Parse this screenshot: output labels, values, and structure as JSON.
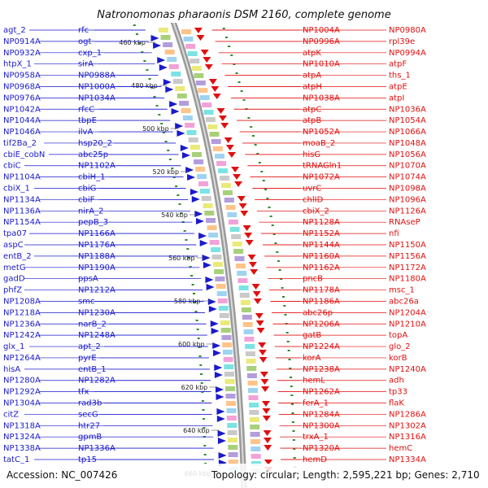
{
  "title": "Natronomonas pharaonis DSM 2160, complete genome",
  "footer": {
    "accession": "Accession: NC_007426",
    "topology": "Topology: circular; Length: 2,595,221 bp; Genes: 2,710"
  },
  "colors": {
    "left": "#1a1acc",
    "right": "#e01010",
    "rna": "#e88fcf",
    "backbone": "#888888",
    "tick": "#2e8b2e"
  },
  "kbp_ticks": [
    "460 kbp",
    "480 kbp",
    "500 kbp",
    "520 kbp",
    "540 kbp",
    "560 kbp",
    "580 kbp",
    "600 kbp",
    "620 kbp",
    "640 kbp",
    "660 kbp"
  ],
  "left_labels": [
    "agt_2",
    "rfc",
    "NP0914A",
    "ogt",
    "NP0932A",
    "cxp_1",
    "htpX_1",
    "sirA",
    "NP0958A",
    "NP0988A",
    "NP0968A",
    "NP1000A",
    "NP0976A",
    "NP1034A",
    "NP1042A",
    "rfcC",
    "NP1044A",
    "tbpE",
    "NP1046A",
    "ilvA",
    "tif2Ba_2",
    "hsp20_2",
    "cbiE_cobN",
    "abc25p",
    "cbiC",
    "NP1102A",
    "NP1104A",
    "cbiH_1",
    "cbiX_1",
    "cbiG",
    "NP1134A",
    "cbiF",
    "NP1136A",
    "nirA_2",
    "NP1154A",
    "pepB_3",
    "tpa07",
    "NP1166A",
    "aspC",
    "NP1176A",
    "entB_2",
    "NP1188A",
    "metG",
    "NP1190A",
    "gadD",
    "ppsA",
    "phfZ",
    "NP1212A",
    "NP1208A",
    "smc",
    "NP1218A",
    "NP1230A",
    "NP1236A",
    "narB_2",
    "NP1242A",
    "NP1248A",
    "glx_1",
    "apt_2",
    "NP1264A",
    "pyrE",
    "hisA",
    "entB_1",
    "NP1280A",
    "NP1282A",
    "NP1292A",
    "tfx",
    "NP1304A",
    "rad3b",
    "citZ",
    "secG",
    "NP1318A",
    "htr27",
    "NP1324A",
    "gpmB",
    "NP1338A",
    "NP1336A",
    "tatC_1",
    "tp15"
  ],
  "right_labels": [
    "NP1004A",
    "NP0980A",
    "NP0996A",
    "rpl39e",
    "atpK",
    "NP0994A",
    "NP1010A",
    "atpF",
    "atpA",
    "ths_1",
    "atpH",
    "atpE",
    "NP1038A",
    "atpI",
    "atpC",
    "NP1036A",
    "atpB",
    "NP1054A",
    "NP1052A",
    "NP1066A",
    "moaB_2",
    "NP1048A",
    "hisG",
    "NP1056A",
    "tRNAGln1",
    "NP1070A",
    "NP1072A",
    "NP1074A",
    "uvrC",
    "NP1098A",
    "chlID",
    "NP1096A",
    "cbiX_2",
    "NP1126A",
    "NP1128A",
    "RNAseP",
    "NP1152A",
    "nfi",
    "NP1144A",
    "NP1150A",
    "NP1160A",
    "NP1156A",
    "NP1162A",
    "NP1172A",
    "pncB",
    "NP1180A",
    "NP1178A",
    "msc_1",
    "NP1186A",
    "abc26a",
    "abc26p",
    "NP1204A",
    "NP1206A",
    "NP1210A",
    "gatB",
    "topA",
    "NP1224A",
    "glo_2",
    "korA",
    "korB",
    "NP1238A",
    "NP1240A",
    "hemL",
    "adh",
    "NP1262A",
    "tp33",
    "ferA_1",
    "flaK",
    "NP1284A",
    "NP1286A",
    "NP1300A",
    "NP1302A",
    "trxA_1",
    "NP1316A",
    "NP1320A",
    "hemC",
    "hemD",
    "NP1334A"
  ]
}
